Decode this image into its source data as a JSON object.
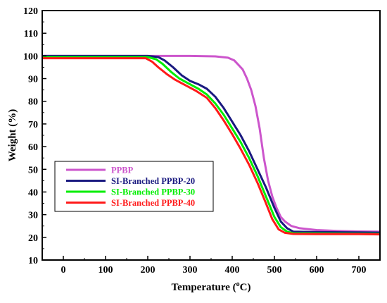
{
  "chart_data": {
    "type": "line",
    "xlabel": "Temperature (",
    "xlabel_sup": "o",
    "xlabel_tail": "C)",
    "ylabel": "Weight (%)",
    "xlim": [
      -50,
      750
    ],
    "ylim": [
      10,
      120
    ],
    "x_ticks": [
      0,
      100,
      200,
      300,
      400,
      500,
      600,
      700
    ],
    "y_ticks": [
      10,
      20,
      30,
      40,
      50,
      60,
      70,
      80,
      90,
      100,
      110,
      120
    ],
    "grid": false,
    "legend_position": "bottom-left",
    "series": [
      {
        "name": "PPBP",
        "color": "#cc55cc",
        "points": [
          [
            -50,
            100
          ],
          [
            100,
            100
          ],
          [
            200,
            100
          ],
          [
            300,
            100
          ],
          [
            360,
            99.8
          ],
          [
            390,
            99.2
          ],
          [
            405,
            98
          ],
          [
            415,
            96
          ],
          [
            425,
            94
          ],
          [
            435,
            90
          ],
          [
            445,
            85
          ],
          [
            455,
            78
          ],
          [
            465,
            68
          ],
          [
            475,
            55
          ],
          [
            485,
            45
          ],
          [
            495,
            38
          ],
          [
            505,
            33
          ],
          [
            515,
            29
          ],
          [
            525,
            27
          ],
          [
            540,
            25
          ],
          [
            560,
            24
          ],
          [
            600,
            23.2
          ],
          [
            650,
            22.8
          ],
          [
            700,
            22.6
          ],
          [
            750,
            22.5
          ]
        ]
      },
      {
        "name": "SI-Branched PPBP-20",
        "color": "#1a1a80",
        "points": [
          [
            -50,
            100
          ],
          [
            100,
            100
          ],
          [
            200,
            100
          ],
          [
            225,
            99.5
          ],
          [
            240,
            98
          ],
          [
            260,
            95
          ],
          [
            280,
            91.5
          ],
          [
            300,
            89
          ],
          [
            320,
            87.5
          ],
          [
            340,
            85.5
          ],
          [
            360,
            82
          ],
          [
            380,
            77
          ],
          [
            400,
            71
          ],
          [
            420,
            65
          ],
          [
            440,
            58
          ],
          [
            460,
            50
          ],
          [
            480,
            42
          ],
          [
            500,
            33
          ],
          [
            515,
            27
          ],
          [
            530,
            24
          ],
          [
            545,
            22.5
          ],
          [
            600,
            22.3
          ],
          [
            700,
            22.2
          ],
          [
            750,
            22.1
          ]
        ]
      },
      {
        "name": "SI-Branched PPBP-30",
        "color": "#00ee00",
        "points": [
          [
            -50,
            99.5
          ],
          [
            100,
            99.5
          ],
          [
            200,
            99.5
          ],
          [
            220,
            98.5
          ],
          [
            235,
            96.5
          ],
          [
            255,
            93
          ],
          [
            275,
            90
          ],
          [
            300,
            87.5
          ],
          [
            320,
            85.5
          ],
          [
            340,
            83
          ],
          [
            360,
            79
          ],
          [
            380,
            74
          ],
          [
            400,
            68
          ],
          [
            420,
            62
          ],
          [
            440,
            55
          ],
          [
            460,
            47
          ],
          [
            480,
            38
          ],
          [
            500,
            29
          ],
          [
            515,
            24.5
          ],
          [
            530,
            22.5
          ],
          [
            545,
            21.8
          ],
          [
            600,
            21.7
          ],
          [
            700,
            21.6
          ],
          [
            750,
            21.5
          ]
        ]
      },
      {
        "name": "SI-Branched PPBP-40",
        "color": "#ff1a1a",
        "points": [
          [
            -50,
            99
          ],
          [
            100,
            99
          ],
          [
            195,
            99
          ],
          [
            210,
            97.5
          ],
          [
            225,
            95
          ],
          [
            245,
            92
          ],
          [
            265,
            89.5
          ],
          [
            290,
            87
          ],
          [
            315,
            84.5
          ],
          [
            340,
            81.5
          ],
          [
            360,
            77
          ],
          [
            380,
            71.5
          ],
          [
            400,
            65.5
          ],
          [
            420,
            59
          ],
          [
            440,
            52
          ],
          [
            460,
            44
          ],
          [
            480,
            35
          ],
          [
            495,
            28
          ],
          [
            510,
            23.5
          ],
          [
            525,
            22
          ],
          [
            545,
            21.5
          ],
          [
            600,
            21.4
          ],
          [
            700,
            21.4
          ],
          [
            750,
            21.3
          ]
        ]
      }
    ]
  }
}
